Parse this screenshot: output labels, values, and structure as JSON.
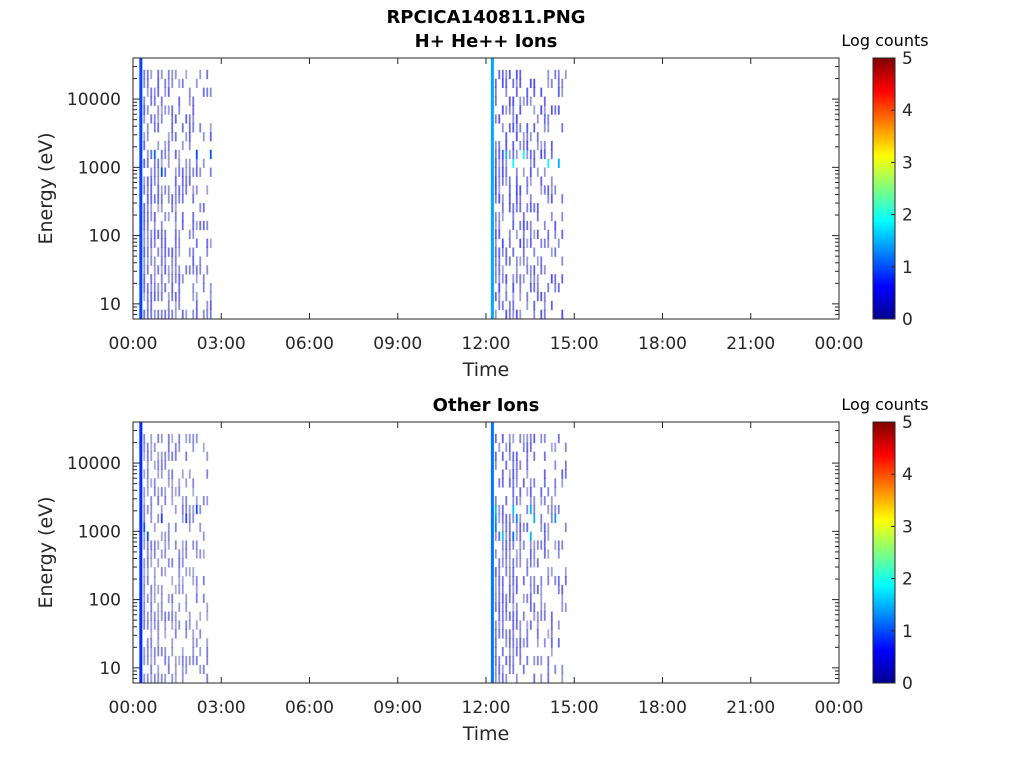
{
  "figure": {
    "title": "RPCICA140811.PNG",
    "colors": {
      "axis": "#262626",
      "background": "#ffffff"
    }
  },
  "chart_data": [
    {
      "type": "heatmap",
      "title": "H+ He++ Ions",
      "xlabel": "Time",
      "ylabel": "Energy (eV)",
      "x_tick_labels": [
        "00:00",
        "03:00",
        "06:00",
        "09:00",
        "12:00",
        "15:00",
        "18:00",
        "21:00",
        "00:00"
      ],
      "x_range_hours": [
        0,
        24
      ],
      "y_tick_labels": [
        "10",
        "100",
        "1000",
        "10000"
      ],
      "y_ticks": [
        10,
        100,
        1000,
        10000
      ],
      "y_scale": "log",
      "ylim": [
        6,
        40000
      ],
      "colorbar": {
        "label": "Log counts",
        "ticks": [
          "0",
          "1",
          "2",
          "3",
          "4",
          "5"
        ],
        "range": [
          0,
          5
        ],
        "colormap": "jet"
      },
      "data_bursts": [
        {
          "start_hour": 0.25,
          "end_hour": 2.7,
          "peak_log_counts": 1.2,
          "typical_log_counts": 0.4
        },
        {
          "start_hour": 12.2,
          "end_hour": 14.8,
          "peak_log_counts": 2.0,
          "typical_log_counts": 0.5
        }
      ]
    },
    {
      "type": "heatmap",
      "title": "Other Ions",
      "xlabel": "Time",
      "ylabel": "Energy (eV)",
      "x_tick_labels": [
        "00:00",
        "03:00",
        "06:00",
        "09:00",
        "12:00",
        "15:00",
        "18:00",
        "21:00",
        "00:00"
      ],
      "x_range_hours": [
        0,
        24
      ],
      "y_tick_labels": [
        "10",
        "100",
        "1000",
        "10000"
      ],
      "y_ticks": [
        10,
        100,
        1000,
        10000
      ],
      "y_scale": "log",
      "ylim": [
        6,
        40000
      ],
      "colorbar": {
        "label": "Log counts",
        "ticks": [
          "0",
          "1",
          "2",
          "3",
          "4",
          "5"
        ],
        "range": [
          0,
          5
        ],
        "colormap": "jet"
      },
      "data_bursts": [
        {
          "start_hour": 0.25,
          "end_hour": 2.6,
          "peak_log_counts": 1.0,
          "typical_log_counts": 0.3
        },
        {
          "start_hour": 12.2,
          "end_hour": 14.8,
          "peak_log_counts": 1.6,
          "typical_log_counts": 0.4
        }
      ]
    }
  ]
}
